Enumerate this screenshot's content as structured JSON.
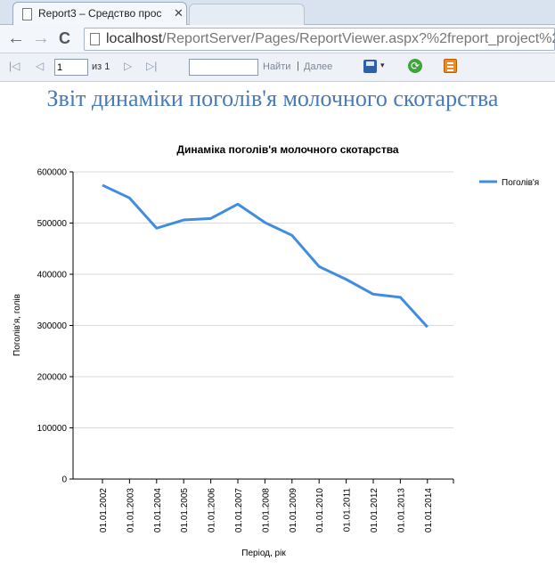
{
  "browser": {
    "tab_title": "Report3 – Средство прос",
    "tab_close": "✕",
    "tab2_title": "",
    "back": "←",
    "forward": "→",
    "reload": "C",
    "url_host": "localhost",
    "url_path": "/ReportServer/Pages/ReportViewer.aspx?%2freport_project%2"
  },
  "toolbar": {
    "first_glyph": "|◁",
    "prev_glyph": "◁",
    "next_glyph": "▷",
    "last_glyph": "▷|",
    "page_value": "1",
    "page_of": "из 1",
    "find_value": "",
    "find_label": "Найти",
    "separator": "|",
    "next_label": "Далее",
    "save_menu_arrow": "▾",
    "refresh_glyph": "⟳",
    "colors": {
      "save": "#2f5fa8",
      "refresh": "#3ea63a",
      "print": "#ee8a1e"
    }
  },
  "report": {
    "title": "Звіт динаміки поголів'я молочного скотарства"
  },
  "chart_data": {
    "type": "line",
    "title": "Динаміка поголів'я молочного скотарства",
    "xlabel": "Період, рік",
    "ylabel": "Поголів'я, голів",
    "categories": [
      "01.01.2002",
      "01.01.2003",
      "01.01.2004",
      "01.01.2005",
      "01.01.2006",
      "01.01.2007",
      "01.01.2008",
      "01.01.2009",
      "01.01.2010",
      "01.01.2011",
      "01.01.2012",
      "01.01.2013",
      "01.01.2014"
    ],
    "series": [
      {
        "name": "Поголів'я",
        "color": "#3f8de0",
        "values": [
          574000,
          549000,
          490000,
          506000,
          509000,
          537000,
          501000,
          476000,
          415000,
          390000,
          361000,
          355000,
          297000
        ]
      }
    ],
    "ylim": [
      0,
      600000
    ],
    "yticks": [
      0,
      100000,
      200000,
      300000,
      400000,
      500000,
      600000
    ],
    "ytick_labels": [
      "0",
      "100000",
      "200000",
      "300000",
      "400000",
      "500000",
      "600000"
    ],
    "grid": "horizontal",
    "legend": "top-right"
  }
}
